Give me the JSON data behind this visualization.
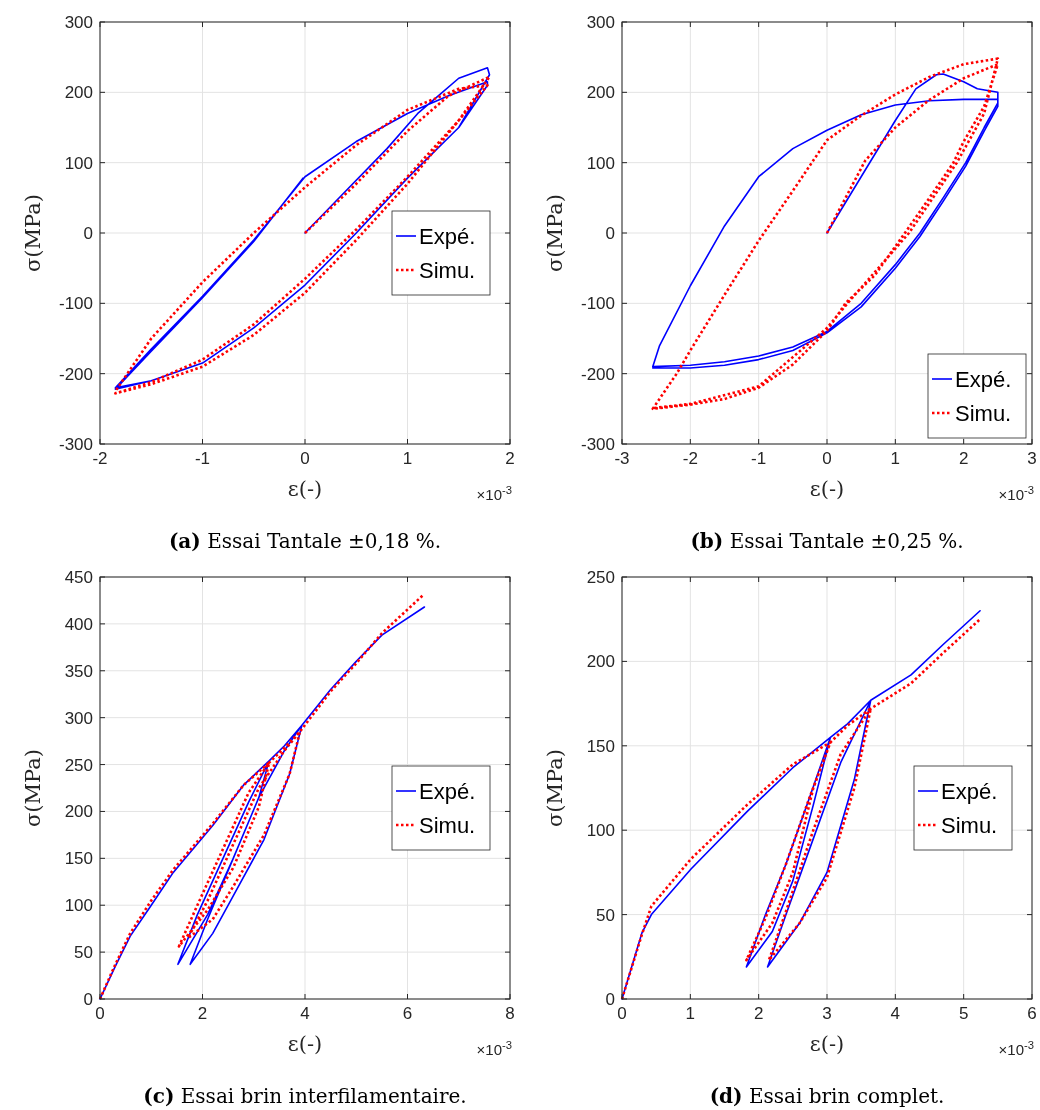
{
  "chart_data": [
    {
      "type": "line",
      "title": "(a) Essai Tantale ±0,18 %.",
      "xlabel": "ε(-)",
      "ylabel": "σ(MPa)",
      "annotations": [
        "×10$^{-3}$"
      ],
      "xlim": [
        -2,
        2
      ],
      "xticks": [
        -2,
        -1,
        0,
        1,
        2
      ],
      "ylim": [
        -300,
        300
      ],
      "yticks": [
        -300,
        -200,
        -100,
        0,
        100,
        200,
        300
      ],
      "grid": true,
      "legend": "right",
      "series": [
        {
          "name": "Expé.",
          "color": "#0000ff",
          "line_style": "solid",
          "x": [
            0,
            0.4,
            0.8,
            1.1,
            1.3,
            1.5,
            1.78,
            1.8,
            1.5,
            1,
            0.5,
            0,
            -0.5,
            -1,
            -1.5,
            -1.85,
            -1.5,
            -1,
            -0.5,
            0,
            0.5,
            1,
            1.4,
            1.78,
            1.78,
            1.5,
            1,
            0.5,
            0,
            -0.5,
            -1,
            -1.5,
            -1.85,
            -1.5,
            -1,
            -0.5,
            -0.02
          ],
          "values": [
            0,
            60,
            120,
            170,
            195,
            220,
            235,
            225,
            150,
            78,
            0,
            -74,
            -135,
            -185,
            -210,
            -220,
            -165,
            -90,
            -10,
            80,
            130,
            170,
            195,
            215,
            210,
            150,
            78,
            0,
            -74,
            -135,
            -185,
            -210,
            -222,
            -168,
            -92,
            -12,
            78
          ]
        },
        {
          "name": "Simu.",
          "color": "#ff0000",
          "line_style": "dotted",
          "x": [
            0,
            0.5,
            1,
            1.4,
            1.8,
            1.5,
            1,
            0.5,
            0,
            -0.5,
            -1,
            -1.5,
            -1.85,
            -1.5,
            -1,
            -0.5,
            0,
            0.5,
            1,
            1.5,
            1.78,
            1.5,
            1,
            0.5,
            0,
            -0.5,
            -1,
            -1.5,
            -1.85
          ],
          "values": [
            0,
            70,
            145,
            195,
            222,
            160,
            70,
            -10,
            -85,
            -145,
            -190,
            -215,
            -228,
            -212,
            -180,
            -130,
            -65,
            5,
            80,
            160,
            210,
            205,
            175,
            125,
            65,
            0,
            -70,
            -150,
            -225
          ]
        }
      ]
    },
    {
      "type": "line",
      "title": "(b) Essai Tantale ±0,25 %.",
      "xlabel": "ε(-)",
      "ylabel": "σ(MPa)",
      "annotations": [
        "×10$^{-3}$"
      ],
      "xlim": [
        -3,
        3
      ],
      "xticks": [
        -3,
        -2,
        -1,
        0,
        1,
        2,
        3
      ],
      "ylim": [
        -300,
        300
      ],
      "yticks": [
        -300,
        -200,
        -100,
        0,
        100,
        200,
        300
      ],
      "grid": true,
      "legend": "bottom right",
      "series": [
        {
          "name": "Expé.",
          "color": "#0000ff",
          "line_style": "solid",
          "x": [
            0,
            0.5,
            1,
            1.3,
            1.6,
            1.7,
            2,
            2.2,
            2.5,
            2.5,
            2.3,
            2.03,
            1.7,
            1.36,
            1,
            0.5,
            0,
            -0.5,
            -1,
            -1.5,
            -2,
            -2.55,
            -2.45,
            -2,
            -1.5,
            -1,
            -0.5,
            0,
            0.5,
            1,
            1.5,
            2,
            2.5,
            2.5,
            2.3,
            2.03,
            1.7,
            1.36,
            1,
            0.5,
            0,
            -0.5,
            -1,
            -1.5,
            -2,
            -2.55
          ],
          "values": [
            0,
            80,
            160,
            205,
            225,
            226,
            215,
            205,
            200,
            185,
            150,
            100,
            50,
            0,
            -45,
            -100,
            -140,
            -162,
            -175,
            -183,
            -188,
            -190,
            -160,
            -75,
            10,
            80,
            120,
            146,
            168,
            182,
            188,
            190,
            190,
            180,
            145,
            95,
            45,
            -5,
            -50,
            -105,
            -142,
            -167,
            -180,
            -188,
            -192,
            -192
          ]
        },
        {
          "name": "Simu.",
          "color": "#ff0000",
          "line_style": "dotted",
          "x": [
            0,
            0.56,
            1,
            1.48,
            2,
            2.5,
            2.3,
            2,
            1.85,
            1.5,
            1.14,
            0.7,
            0.27,
            0,
            -0.5,
            -1,
            -1.5,
            -2,
            -2.55,
            -2.2,
            -2,
            -1.5,
            -1,
            -0.5,
            0,
            0.5,
            1,
            1.5,
            2,
            2.5,
            2.3,
            1.9,
            1.2,
            0.3,
            0,
            -1,
            -2,
            -2.55
          ],
          "values": [
            0,
            103,
            150,
            188,
            220,
            240,
            180,
            130,
            100,
            50,
            0,
            -60,
            -100,
            -139,
            -187,
            -220,
            -236,
            -244,
            -250,
            -200,
            -167,
            -88,
            -11,
            60,
            132,
            167,
            197,
            222,
            240,
            248,
            170,
            100,
            0,
            -100,
            -135,
            -218,
            -243,
            -249
          ]
        }
      ]
    },
    {
      "type": "line",
      "title": "(c) Essai brin interfilamentaire.",
      "xlabel": "ε(-)",
      "ylabel": "σ(MPa)",
      "annotations": [
        "×10$^{-3}$"
      ],
      "xlim": [
        0,
        8
      ],
      "xticks": [
        0,
        2,
        4,
        6,
        8
      ],
      "ylim": [
        0,
        450
      ],
      "yticks": [
        0,
        50,
        100,
        150,
        200,
        250,
        300,
        350,
        400,
        450
      ],
      "grid": true,
      "legend": "right",
      "series": [
        {
          "name": "Expé.",
          "color": "#0000ff",
          "line_style": "solid",
          "x": [
            0,
            0.3,
            0.59,
            1,
            1.43,
            2.2,
            2.8,
            3.3,
            3.1,
            2.6,
            2.1,
            1.52,
            1.9,
            2.4,
            2.9,
            3.3,
            3.6,
            3.94,
            3.7,
            3.2,
            2.6,
            2.2,
            1.76,
            2.1,
            2.6,
            3.1,
            3.6,
            3.94,
            4.5,
            5,
            5.5,
            6.33
          ],
          "values": [
            0,
            35,
            67,
            100,
            135,
            185,
            228,
            254,
            215,
            150,
            90,
            37,
            90,
            150,
            210,
            254,
            270,
            292,
            240,
            170,
            110,
            70,
            37,
            85,
            150,
            215,
            265,
            292,
            330,
            360,
            388,
            418
          ]
        },
        {
          "name": "Simu.",
          "color": "#ff0000",
          "line_style": "dotted",
          "x": [
            0,
            0.3,
            0.59,
            1,
            1.43,
            2.2,
            2.8,
            3.3,
            3.1,
            2.6,
            2.1,
            1.54,
            1.9,
            2.4,
            2.9,
            3.3,
            3.6,
            3.9,
            3.7,
            3.2,
            2.6,
            2.2,
            1.72,
            2.1,
            2.6,
            3.1,
            3.6,
            3.9,
            4.5,
            5,
            5.5,
            6.31
          ],
          "values": [
            0,
            37,
            70,
            105,
            138,
            187,
            228,
            252,
            205,
            140,
            95,
            56,
            100,
            160,
            220,
            252,
            268,
            285,
            240,
            175,
            120,
            85,
            65,
            105,
            165,
            225,
            265,
            285,
            328,
            358,
            390,
            431
          ]
        }
      ]
    },
    {
      "type": "line",
      "title": "(d) Essai brin complet.",
      "xlabel": "ε(-)",
      "ylabel": "σ(MPa)",
      "annotations": [
        "×10$^{-3}$"
      ],
      "xlim": [
        0,
        6
      ],
      "xticks": [
        0,
        1,
        2,
        3,
        4,
        5,
        6
      ],
      "ylim": [
        0,
        250
      ],
      "yticks": [
        0,
        50,
        100,
        150,
        200,
        250
      ],
      "grid": true,
      "legend": "right",
      "series": [
        {
          "name": "Expé.",
          "color": "#0000ff",
          "line_style": "solid",
          "x": [
            0,
            0.29,
            0.43,
            1.01,
            1.83,
            2.5,
            3.05,
            2.8,
            2.5,
            2.2,
            1.82,
            2.1,
            2.4,
            2.75,
            3.05,
            3.3,
            3.64,
            3.4,
            3,
            2.6,
            2.13,
            2.4,
            2.8,
            3.2,
            3.64,
            4.23,
            4.7,
            5.24
          ],
          "values": [
            0,
            39,
            50,
            77,
            111,
            137,
            155,
            115,
            70,
            40,
            19,
            50,
            80,
            120,
            155,
            163,
            177,
            130,
            75,
            45,
            19,
            50,
            95,
            140,
            177,
            192,
            210,
            230
          ]
        },
        {
          "name": "Simu.",
          "color": "#ff0000",
          "line_style": "dotted",
          "x": [
            0,
            0.29,
            0.43,
            1.01,
            1.83,
            2.5,
            3.05,
            2.8,
            2.5,
            2.2,
            1.82,
            2.1,
            2.4,
            2.75,
            3.05,
            3.3,
            3.64,
            3.4,
            3,
            2.6,
            2.15,
            2.4,
            2.8,
            3.2,
            3.64,
            4.23,
            4.7,
            5.24
          ],
          "values": [
            0,
            38,
            55,
            83,
            115,
            139,
            152,
            125,
            75,
            45,
            23,
            48,
            80,
            120,
            152,
            162,
            172,
            125,
            72,
            45,
            23,
            52,
            100,
            145,
            172,
            187,
            205,
            225
          ]
        }
      ]
    }
  ]
}
